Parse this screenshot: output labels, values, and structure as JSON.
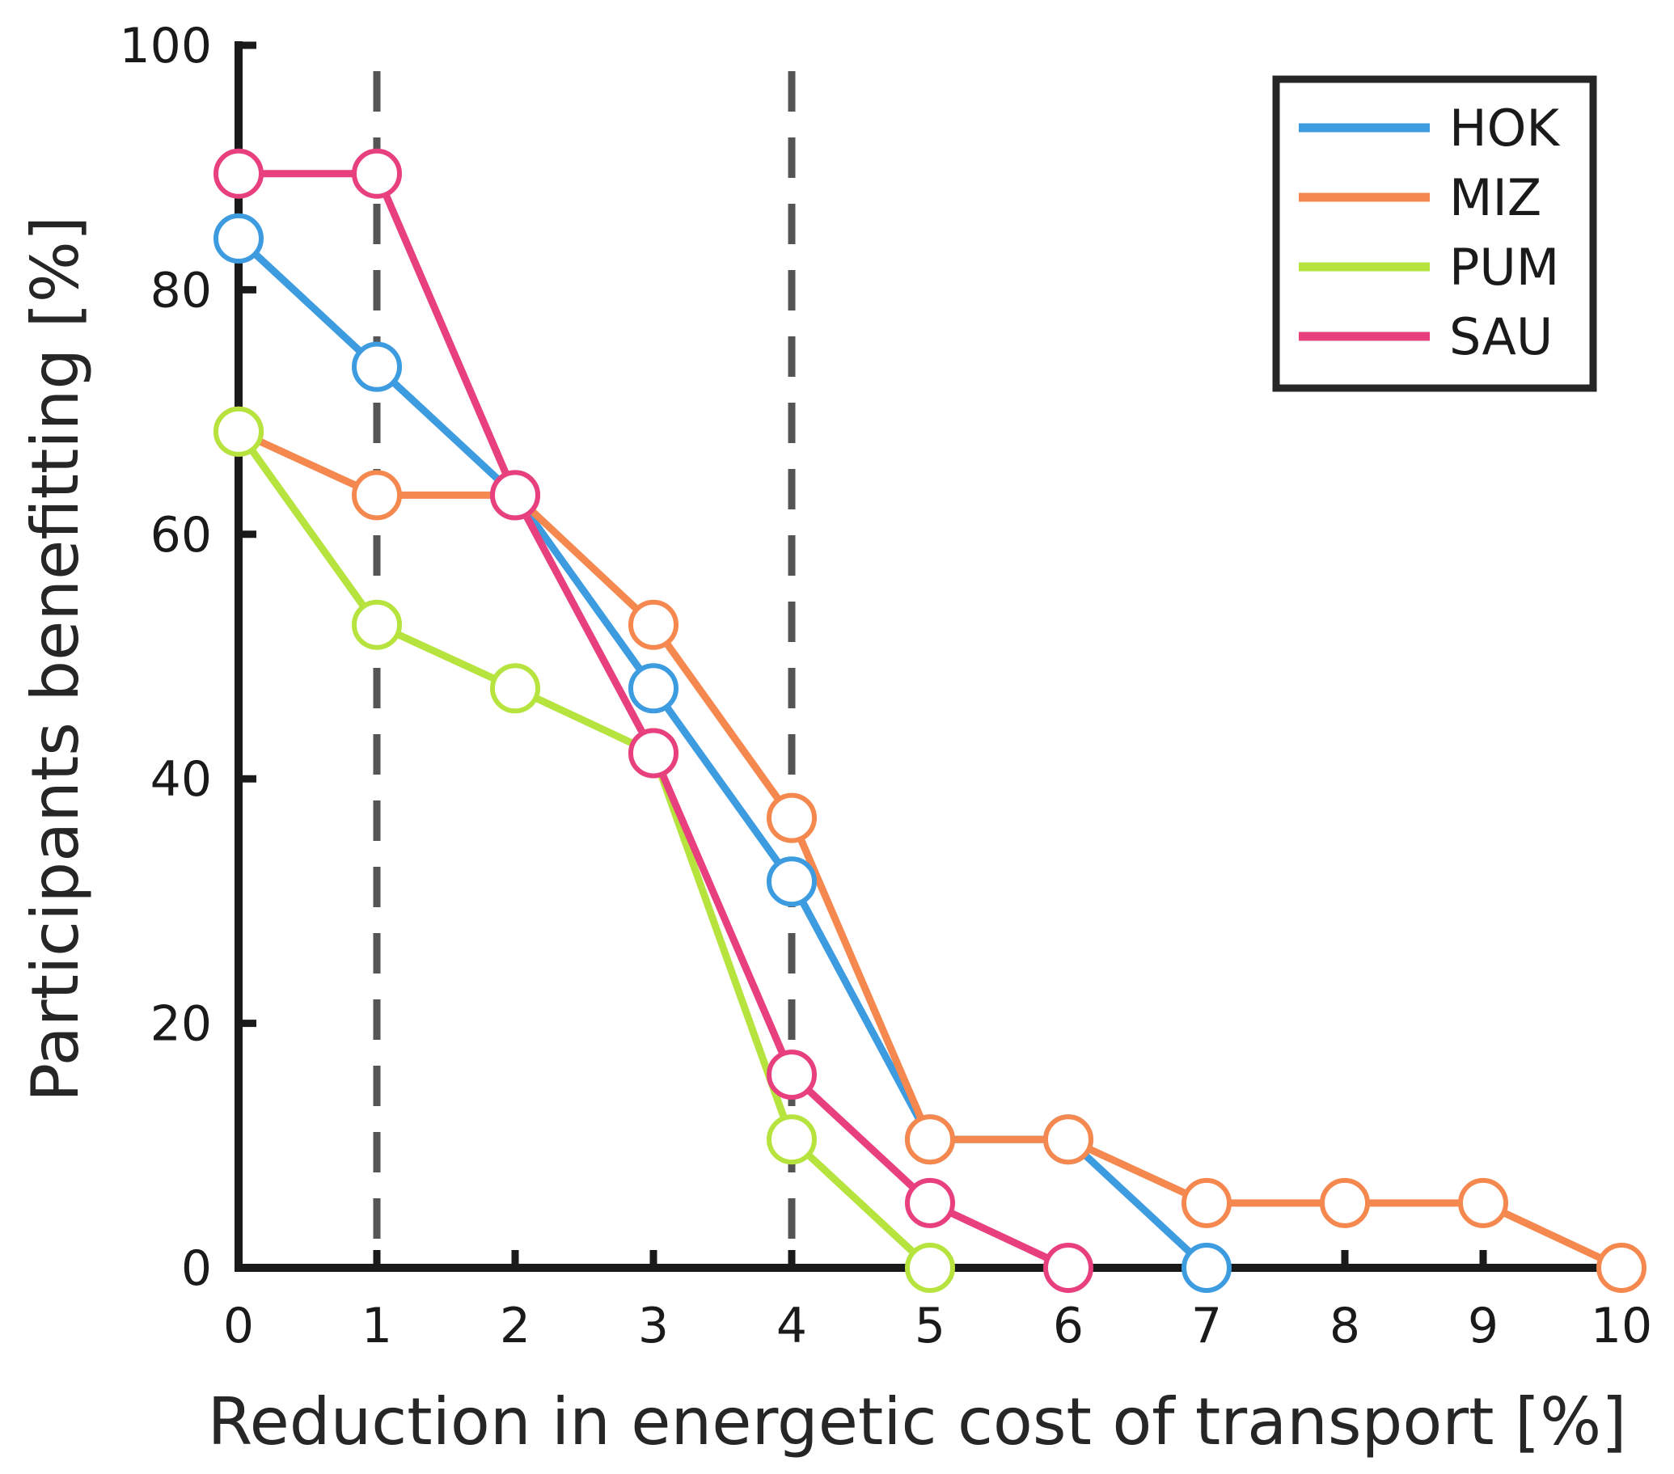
{
  "chart_data": {
    "type": "line",
    "title": "",
    "xlabel": "Reduction in energetic cost of transport [%]",
    "ylabel": "Participants benefitting [%]",
    "xlim": [
      0,
      10
    ],
    "ylim": [
      0,
      100
    ],
    "xticks": [
      0,
      1,
      2,
      3,
      4,
      5,
      6,
      7,
      8,
      9,
      10
    ],
    "yticks": [
      0,
      20,
      40,
      60,
      80,
      100
    ],
    "xtick_labels": [
      "0",
      "1",
      "2",
      "3",
      "4",
      "5",
      "6",
      "7",
      "8",
      "9",
      "10"
    ],
    "ytick_labels": [
      "0",
      "20",
      "40",
      "60",
      "80",
      "100"
    ],
    "grid": false,
    "legend_position": "top-right",
    "reference_lines": [
      {
        "axis": "x",
        "value": 1,
        "style": "dashed",
        "color": "#555555"
      },
      {
        "axis": "x",
        "value": 4,
        "style": "dashed",
        "color": "#555555"
      }
    ],
    "series": [
      {
        "name": "HOK",
        "color": "#3d9be0",
        "x": [
          0,
          1,
          2,
          3,
          4,
          5,
          6,
          7
        ],
        "values": [
          84.2,
          73.7,
          63.2,
          47.4,
          31.6,
          10.5,
          10.5,
          0
        ]
      },
      {
        "name": "MIZ",
        "color": "#f5884f",
        "x": [
          0,
          1,
          2,
          3,
          4,
          5,
          6,
          7,
          8,
          9,
          10
        ],
        "values": [
          68.4,
          63.2,
          63.2,
          52.6,
          36.8,
          10.5,
          10.5,
          5.3,
          5.3,
          5.3,
          0
        ]
      },
      {
        "name": "PUM",
        "color": "#b6e33e",
        "x": [
          0,
          1,
          2,
          3,
          4,
          5
        ],
        "values": [
          68.4,
          52.6,
          47.4,
          42.1,
          10.5,
          0
        ]
      },
      {
        "name": "SAU",
        "color": "#e8407f",
        "x": [
          0,
          1,
          2,
          3,
          4,
          5,
          6
        ],
        "values": [
          89.5,
          89.5,
          63.2,
          42.1,
          15.8,
          5.3,
          0
        ]
      }
    ]
  }
}
